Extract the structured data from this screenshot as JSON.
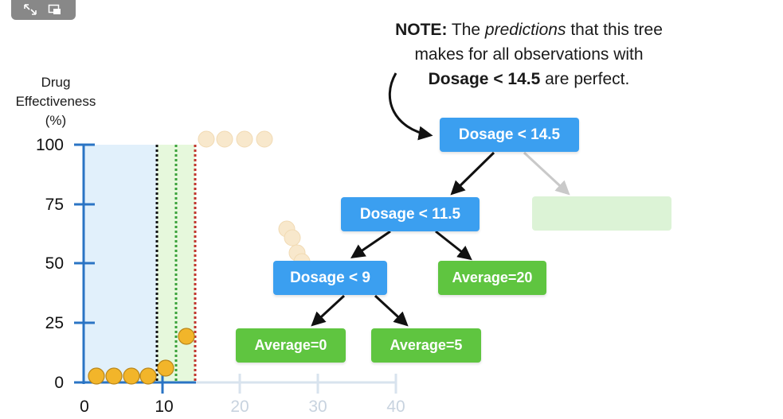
{
  "player": {
    "icons": [
      "fullscreen-arrows-icon",
      "picture-in-picture-icon"
    ]
  },
  "note": {
    "lead": "NOTE:",
    "t1": " The ",
    "em": "predictions",
    "t2": " that this tree",
    "line2": "makes for all observations with",
    "bold3": "Dosage < 14.5",
    "t3": " are perfect."
  },
  "chart": {
    "ylabel_lines": [
      "Drug",
      "Effectiveness",
      "(%)"
    ],
    "yticks": [
      "100",
      "75",
      "50",
      "25",
      "0"
    ],
    "xticks": [
      "0",
      "10",
      "20",
      "30",
      "40"
    ]
  },
  "tree": {
    "root": "Dosage < 14.5",
    "left": "Dosage < 11.5",
    "leftleft": "Dosage < 9",
    "leftright": "Average=20",
    "leaf_a": "Average=0",
    "leaf_b": "Average=5"
  },
  "colors": {
    "axis": "#2a74c4",
    "node_blue": "#3b9ff0",
    "node_green": "#5fc540",
    "point": "#f2b52a",
    "point_faded": "#f8e8cc",
    "region_blue": "#e1f0fb",
    "region_green": "#e6f8dc"
  }
}
